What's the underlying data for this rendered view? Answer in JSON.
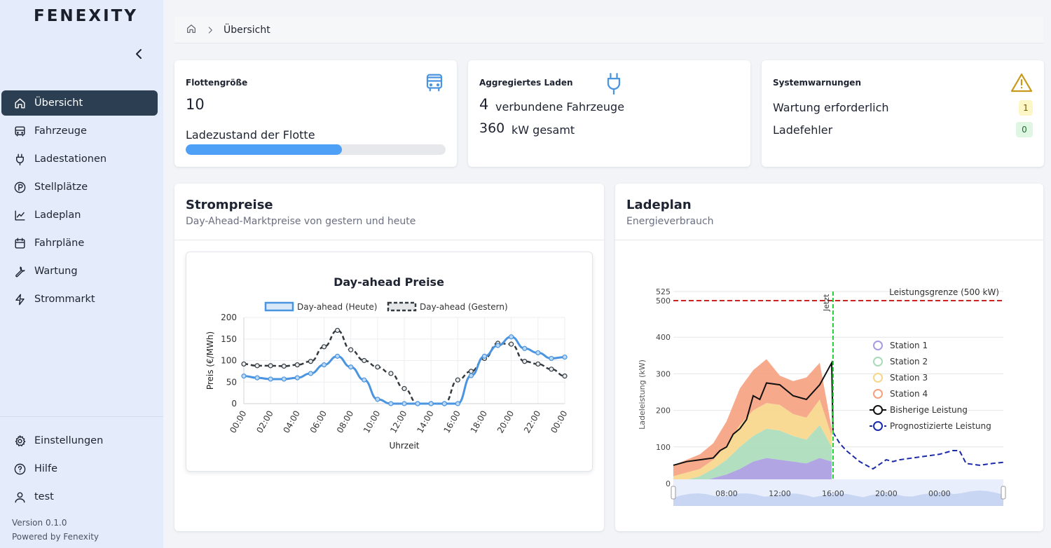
{
  "app": {
    "logo_text": "FENEXITY"
  },
  "sidebar": {
    "items": [
      {
        "label": "Übersicht",
        "icon": "home-icon",
        "active": true
      },
      {
        "label": "Fahrzeuge",
        "icon": "bus-icon"
      },
      {
        "label": "Ladestationen",
        "icon": "plug-icon"
      },
      {
        "label": "Stellplätze",
        "icon": "parking-icon"
      },
      {
        "label": "Ladeplan",
        "icon": "chart-line-icon"
      },
      {
        "label": "Fahrpläne",
        "icon": "calendar-icon"
      },
      {
        "label": "Wartung",
        "icon": "wrench-icon"
      },
      {
        "label": "Strommarkt",
        "icon": "bolt-icon"
      }
    ],
    "bottom_items": [
      {
        "label": "Einstellungen",
        "icon": "gear-icon"
      },
      {
        "label": "Hilfe",
        "icon": "help-icon"
      },
      {
        "label": "test",
        "icon": "user-icon"
      }
    ],
    "version": "Version 0.1.0",
    "powered_by": "Powered by Fenexity"
  },
  "breadcrumb": {
    "current": "Übersicht"
  },
  "cards": {
    "fleet": {
      "title": "Flottengröße",
      "value": "10",
      "soc_label": "Ladezustand der Flotte",
      "soc_fraction": 0.6
    },
    "charging": {
      "title": "Aggregiertes Laden",
      "vehicles_value": "4",
      "vehicles_label": "verbundene Fahrzeuge",
      "power_value": "360",
      "power_label": "kW gesamt"
    },
    "warnings": {
      "title": "Systemwarnungen",
      "items": [
        {
          "label": "Wartung erforderlich",
          "count": "1",
          "color": "yellow"
        },
        {
          "label": "Ladefehler",
          "count": "0",
          "color": "green"
        }
      ]
    }
  },
  "prices_panel": {
    "title": "Strompreise",
    "subtitle": "Day-Ahead-Marktpreise von gestern und heute"
  },
  "schedule_panel": {
    "title": "Ladeplan",
    "subtitle": "Energieverbrauch"
  },
  "colors": {
    "accent": "#4da0f5",
    "nav_active": "#2c3e51",
    "today_line": "#4a94e0",
    "yesterday_line": "#333a40",
    "limit_line": "#cc2222",
    "now_line": "#22cc33",
    "forecast_line": "#1a2aa8"
  },
  "chart_data": [
    {
      "type": "line",
      "title": "Day-ahead Preise",
      "xlabel": "Uhrzeit",
      "ylabel": "Preis (€/MWh)",
      "ylim": [
        0,
        200
      ],
      "yticks": [
        0,
        50,
        100,
        150,
        200
      ],
      "x_tick_labels": [
        "00:00",
        "02:00",
        "04:00",
        "06:00",
        "08:00",
        "10:00",
        "12:00",
        "14:00",
        "16:00",
        "18:00",
        "20:00",
        "22:00",
        "00:00"
      ],
      "x_hours": [
        0,
        1,
        2,
        3,
        4,
        5,
        6,
        7,
        8,
        9,
        10,
        11,
        12,
        13,
        14,
        15,
        16,
        17,
        18,
        19,
        20,
        21,
        22,
        23,
        24
      ],
      "legend_position": "top",
      "series": [
        {
          "name": "Day-ahead (Heute)",
          "style": "solid",
          "color": "#4a94e0",
          "values": [
            64,
            60,
            57,
            57,
            60,
            70,
            90,
            110,
            85,
            55,
            10,
            0,
            0,
            0,
            0,
            0,
            0,
            65,
            110,
            135,
            155,
            128,
            118,
            105,
            108
          ]
        },
        {
          "name": "Day-ahead (Gestern)",
          "style": "dashed",
          "color": "#333a40",
          "values": [
            92,
            88,
            88,
            87,
            90,
            98,
            132,
            170,
            125,
            100,
            85,
            70,
            35,
            0,
            0,
            0,
            55,
            75,
            105,
            140,
            138,
            98,
            92,
            80,
            64
          ]
        }
      ]
    },
    {
      "type": "area",
      "xlabel": "",
      "ylabel": "Ladeleistung (kW)",
      "ylim": [
        0,
        525
      ],
      "yticks": [
        0,
        100,
        200,
        300,
        400,
        500,
        525
      ],
      "x_tick_labels": [
        "08:00",
        "12:00",
        "16:00",
        "20:00",
        "00:00"
      ],
      "x_range_hours": [
        4,
        28.8
      ],
      "limit": {
        "label": "Leistungsgrenze (500 kW)",
        "value": 500
      },
      "now": {
        "label": "Jetzt",
        "hour": 16
      },
      "legend_position": "right",
      "x": [
        4,
        5,
        6,
        7,
        8,
        9,
        10,
        11,
        12,
        13,
        14,
        15,
        15.9
      ],
      "series": [
        {
          "name": "Station 1",
          "color": "#a89be0",
          "values": [
            0,
            0,
            5,
            15,
            25,
            40,
            60,
            70,
            65,
            60,
            55,
            70,
            60
          ]
        },
        {
          "name": "Station 2",
          "color": "#a8dcb8",
          "values": [
            5,
            10,
            15,
            25,
            40,
            60,
            70,
            80,
            80,
            70,
            65,
            90,
            40
          ]
        },
        {
          "name": "Station 3",
          "color": "#f7d68a",
          "values": [
            15,
            20,
            20,
            25,
            40,
            60,
            70,
            70,
            70,
            60,
            60,
            70,
            30
          ]
        },
        {
          "name": "Station 4",
          "color": "#f6a07e",
          "values": [
            30,
            35,
            40,
            45,
            65,
            100,
            110,
            120,
            80,
            90,
            110,
            100,
            20
          ]
        },
        {
          "name": "Bisherige Leistung",
          "color": "#111111",
          "style": "line",
          "x": [
            4,
            5,
            6,
            7,
            7.5,
            8,
            8.5,
            9,
            9.5,
            10,
            10.5,
            11,
            12,
            13,
            14,
            15,
            15.9,
            16
          ],
          "values": [
            50,
            60,
            65,
            70,
            90,
            100,
            135,
            150,
            175,
            240,
            230,
            275,
            270,
            240,
            230,
            270,
            330,
            140
          ]
        },
        {
          "name": "Prognostizierte Leistung",
          "color": "#1a2aa8",
          "style": "dashed",
          "x": [
            16,
            16.5,
            17,
            18,
            19,
            20,
            20.5,
            21,
            22,
            23,
            24,
            25,
            25.5,
            26,
            27,
            28,
            28.8
          ],
          "values": [
            140,
            110,
            90,
            60,
            40,
            65,
            60,
            65,
            70,
            75,
            80,
            90,
            90,
            55,
            50,
            55,
            58
          ]
        }
      ]
    }
  ]
}
